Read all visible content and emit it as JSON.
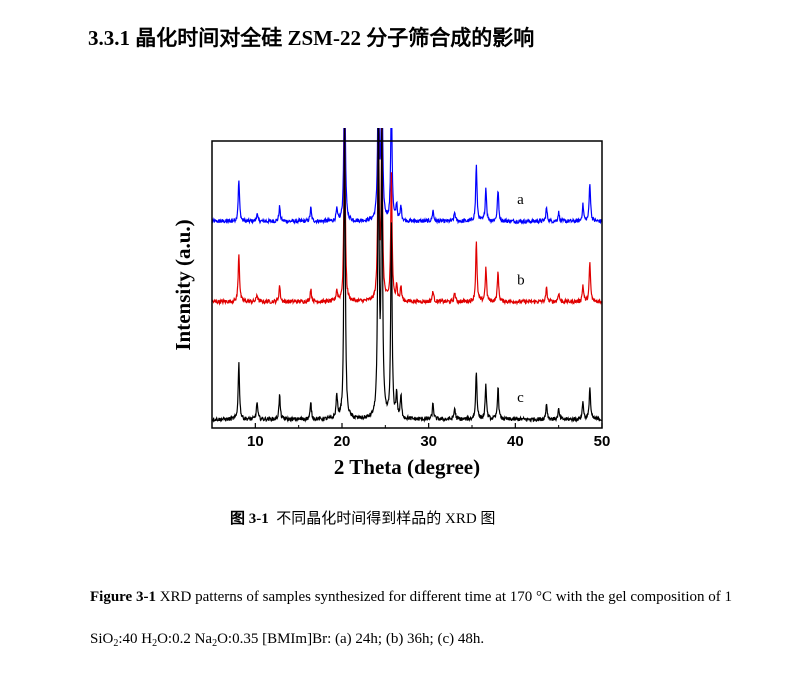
{
  "heading": "3.3.1 晶化时间对全硅 ZSM-22 分子筛合成的影响",
  "chart_data": {
    "type": "line",
    "xlabel": "2 Theta (degree)",
    "ylabel": "Intensity (a.u.)",
    "xlim": [
      5,
      50
    ],
    "ylim": [
      0,
      100
    ],
    "xticks": [
      10,
      20,
      30,
      40,
      50
    ],
    "grid": false,
    "legend": "none",
    "series": [
      {
        "name": "a",
        "color": "#0000ff",
        "baseline": 72,
        "scale": 0.26,
        "peaks": [
          [
            8.1,
            55
          ],
          [
            10.2,
            10
          ],
          [
            12.8,
            20
          ],
          [
            16.4,
            18
          ],
          [
            19.4,
            15
          ],
          [
            20.3,
            230
          ],
          [
            24.2,
            245
          ],
          [
            24.6,
            230
          ],
          [
            25.7,
            165
          ],
          [
            26.3,
            22
          ],
          [
            26.8,
            20
          ],
          [
            30.5,
            15
          ],
          [
            33.0,
            12
          ],
          [
            35.5,
            75
          ],
          [
            36.6,
            45
          ],
          [
            38.0,
            42
          ],
          [
            43.6,
            18
          ],
          [
            45.0,
            12
          ],
          [
            47.8,
            22
          ],
          [
            48.6,
            52
          ]
        ]
      },
      {
        "name": "b",
        "color": "#e00000",
        "baseline": 44,
        "scale": 0.26,
        "peaks": [
          [
            8.1,
            65
          ],
          [
            10.2,
            10
          ],
          [
            12.8,
            22
          ],
          [
            16.4,
            18
          ],
          [
            19.4,
            15
          ],
          [
            20.3,
            250
          ],
          [
            24.2,
            255
          ],
          [
            24.6,
            235
          ],
          [
            25.7,
            170
          ],
          [
            26.3,
            22
          ],
          [
            26.8,
            20
          ],
          [
            30.5,
            15
          ],
          [
            33.0,
            12
          ],
          [
            35.5,
            80
          ],
          [
            36.6,
            45
          ],
          [
            38.0,
            40
          ],
          [
            43.6,
            18
          ],
          [
            45.0,
            12
          ],
          [
            47.8,
            22
          ],
          [
            48.6,
            52
          ]
        ]
      },
      {
        "name": "c",
        "color": "#000000",
        "baseline": 3,
        "scale": 0.28,
        "peaks": [
          [
            8.1,
            70
          ],
          [
            10.2,
            22
          ],
          [
            12.8,
            30
          ],
          [
            16.4,
            20
          ],
          [
            19.4,
            30
          ],
          [
            20.3,
            375
          ],
          [
            24.2,
            385
          ],
          [
            24.6,
            360
          ],
          [
            25.7,
            240
          ],
          [
            26.3,
            30
          ],
          [
            26.8,
            28
          ],
          [
            30.5,
            20
          ],
          [
            33.0,
            14
          ],
          [
            35.5,
            60
          ],
          [
            36.6,
            42
          ],
          [
            38.0,
            40
          ],
          [
            43.6,
            20
          ],
          [
            45.0,
            12
          ],
          [
            47.8,
            22
          ],
          [
            48.6,
            40
          ]
        ]
      }
    ]
  },
  "caption_cn": {
    "label": "图 3-1",
    "text": "不同晶化时间得到样品的 XRD 图"
  },
  "caption_en": {
    "label": "Figure 3-1",
    "p1": " XRD patterns of samples synthesized for different time at 170 °C with the gel composition of 1 SiO",
    "s1": "2",
    "p2": ":40 H",
    "s2": "2",
    "p3": "O:0.2 Na",
    "s3": "2",
    "p4": "O:0.35 [BMIm]Br: (a) 24h; (b) 36h; (c) 48h."
  }
}
